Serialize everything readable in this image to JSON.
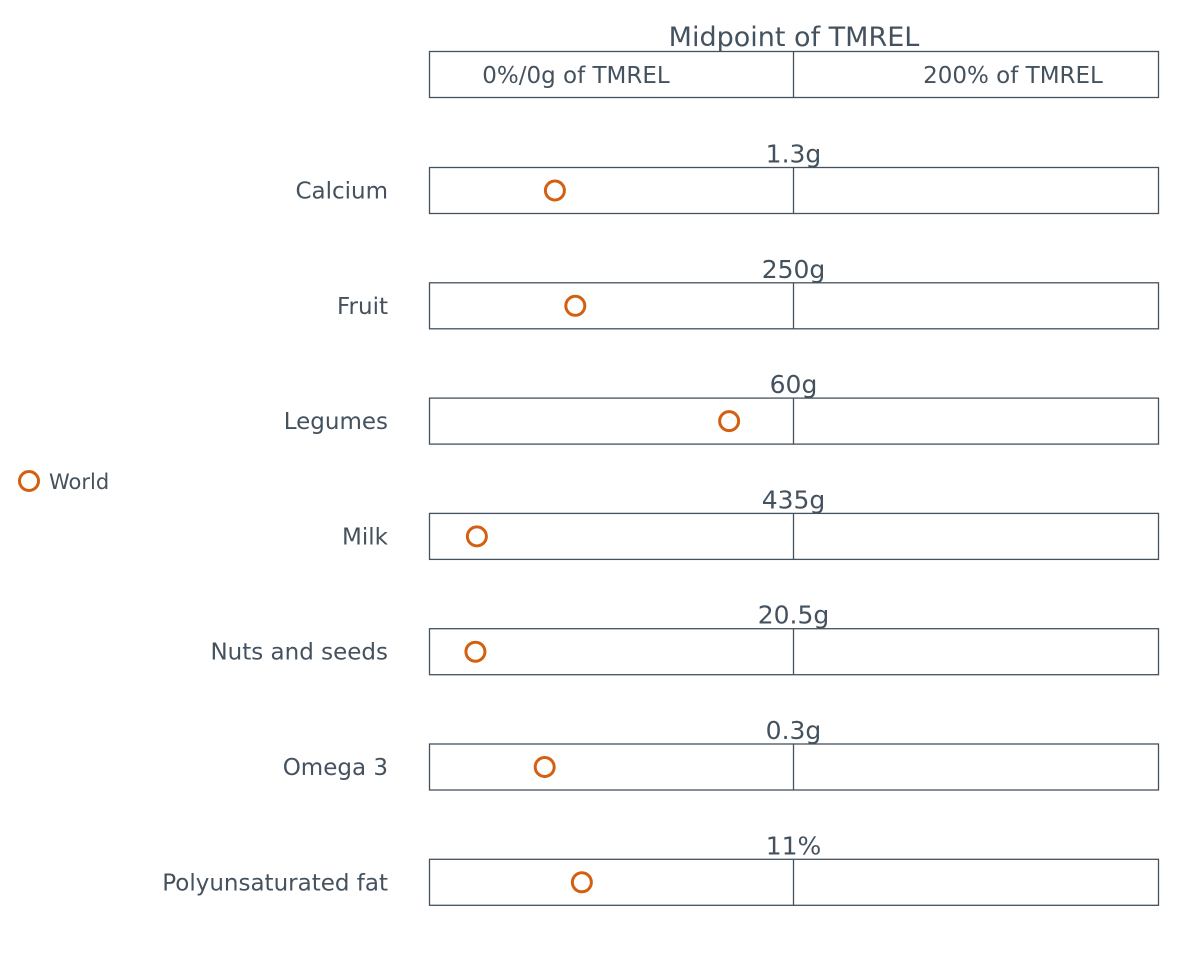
{
  "chart_data": {
    "type": "scatter",
    "header": {
      "midpoint_label": "Midpoint of TMREL",
      "left_label": "0%/0g of TMREL",
      "right_label": "200% of TMREL"
    },
    "x_scale": {
      "unit": "fraction of 2×TMREL",
      "range": [
        0,
        1
      ]
    },
    "legend": {
      "position": "left",
      "entries": [
        {
          "label": "World",
          "color": "#d45f10"
        }
      ]
    },
    "marker_color": "#d45f10",
    "rows": [
      {
        "label": "Calcium",
        "tmrel": "1.3g",
        "value": 0.172
      },
      {
        "label": "Fruit",
        "tmrel": "250g",
        "value": 0.2
      },
      {
        "label": "Legumes",
        "tmrel": "60g",
        "value": 0.411
      },
      {
        "label": "Milk",
        "tmrel": "435g",
        "value": 0.065
      },
      {
        "label": "Nuts and seeds",
        "tmrel": "20.5g",
        "value": 0.063
      },
      {
        "label": "Omega 3",
        "tmrel": "0.3g",
        "value": 0.158
      },
      {
        "label": "Polyunsaturated fat",
        "tmrel": "11%",
        "value": 0.209
      }
    ]
  }
}
